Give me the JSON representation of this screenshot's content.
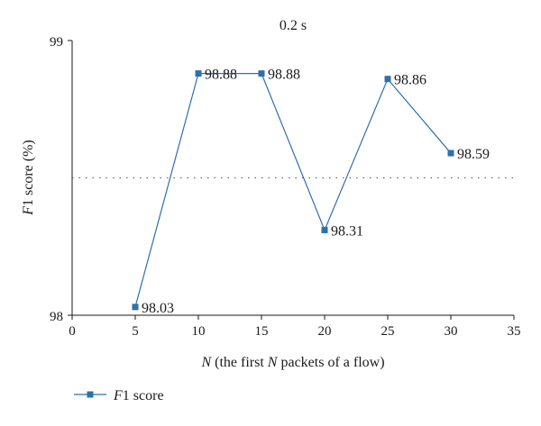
{
  "chart_data": {
    "type": "line",
    "title": "0.2 s",
    "xlabel": {
      "parts": [
        {
          "text": "N",
          "italic": true
        },
        {
          "text": " (the first ",
          "italic": false
        },
        {
          "text": "N",
          "italic": true
        },
        {
          "text": " packets of a flow)",
          "italic": false
        }
      ]
    },
    "ylabel": {
      "parts": [
        {
          "text": "F",
          "italic": true
        },
        {
          "text": "1 score (%)",
          "italic": false
        }
      ]
    },
    "xlim": [
      0,
      35
    ],
    "ylim": [
      98,
      99
    ],
    "xticks": [
      0,
      5,
      10,
      15,
      20,
      25,
      30,
      35
    ],
    "yticks": [
      98,
      99
    ],
    "reference_line": {
      "y": 98.5,
      "style": "dotted"
    },
    "series": [
      {
        "name": "F1 score",
        "name_parts": [
          {
            "text": "F",
            "italic": true
          },
          {
            "text": "1 score",
            "italic": false
          }
        ],
        "color": "#2f6fae",
        "marker": "square",
        "x": [
          5,
          10,
          15,
          20,
          25,
          30
        ],
        "values": [
          98.03,
          98.88,
          98.88,
          98.31,
          98.86,
          98.59
        ],
        "labels": [
          "98.03",
          "98.88",
          "98.88",
          "98.31",
          "98.86",
          "98.59"
        ]
      }
    ],
    "legend": "bottom-left",
    "grid": false
  }
}
